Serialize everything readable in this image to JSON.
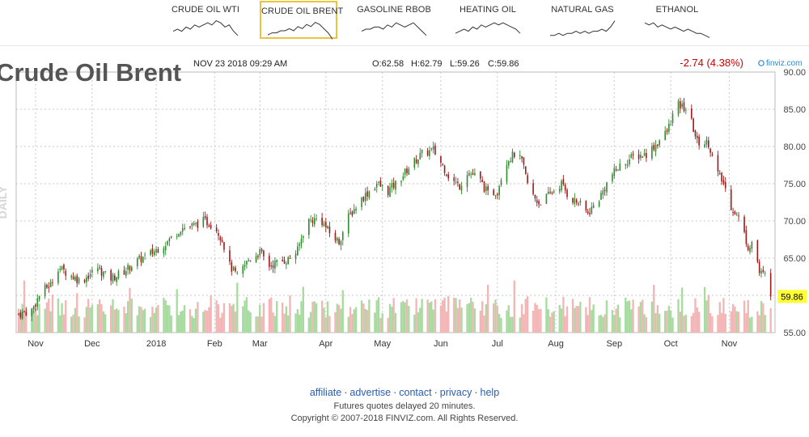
{
  "tabs": [
    {
      "label": "CRUDE OIL WTI",
      "active": false,
      "spark": [
        6,
        5,
        6,
        4,
        5,
        3,
        4,
        3,
        2,
        3,
        1,
        2,
        4,
        3,
        6,
        8
      ]
    },
    {
      "label": "CRUDE OIL BRENT",
      "active": true,
      "spark": [
        7,
        6,
        6,
        5,
        5,
        4,
        5,
        3,
        4,
        2,
        3,
        1,
        2,
        4,
        6,
        9
      ]
    },
    {
      "label": "GASOLINE RBOB",
      "active": false,
      "spark": [
        6,
        5,
        5,
        4,
        4,
        5,
        3,
        4,
        2,
        3,
        4,
        3,
        2,
        4,
        6,
        8
      ]
    },
    {
      "label": "HEATING OIL",
      "active": false,
      "spark": [
        7,
        6,
        5,
        6,
        4,
        5,
        3,
        4,
        3,
        2,
        3,
        2,
        3,
        4,
        5,
        7
      ]
    },
    {
      "label": "NATURAL GAS",
      "active": false,
      "spark": [
        8,
        8,
        7,
        8,
        7,
        7,
        6,
        7,
        6,
        7,
        6,
        6,
        5,
        6,
        4,
        1
      ]
    },
    {
      "label": "ETHANOL",
      "active": false,
      "spark": [
        2,
        3,
        2,
        4,
        3,
        4,
        5,
        4,
        5,
        6,
        5,
        6,
        7,
        7,
        8,
        9
      ]
    }
  ],
  "chart": {
    "title": "Crude Oil Brent",
    "side_label": "DAILY",
    "timestamp": "NOV 23 2018 09:29 AM",
    "ohlc": {
      "open": "O:62.58",
      "high": "H:62.79",
      "low": "L:59.26",
      "close": "C:59.86"
    },
    "change": "-2.74 (4.38%)",
    "watermark": "finviz.com",
    "last_price": "59.86",
    "colors": {
      "up": "#2e8b2e",
      "down": "#9b1a1a",
      "vol_up": "#a8dba0",
      "vol_down": "#f3b5b5",
      "change": "#cc0000",
      "badge": "#ffff33"
    }
  },
  "chart_data": {
    "type": "candlestick",
    "title": "Crude Oil Brent",
    "ylim": [
      55,
      90
    ],
    "y_ticks": [
      55,
      60,
      65,
      70,
      75,
      80,
      85,
      90
    ],
    "y_tick_labels": [
      "55.00",
      "60.00",
      "65.00",
      "70.00",
      "75.00",
      "80.00",
      "85.00",
      "90.00"
    ],
    "x_labels": [
      "Nov",
      "Dec",
      "2018",
      "Feb",
      "Mar",
      "Apr",
      "May",
      "Jun",
      "Jul",
      "Aug",
      "Sep",
      "Oct",
      "Nov"
    ],
    "x_label_days": [
      9,
      39,
      73,
      104,
      128,
      163,
      193,
      224,
      254,
      285,
      316,
      346,
      377
    ],
    "last_close": 59.86,
    "anchors": [
      [
        0,
        57.5
      ],
      [
        7,
        58.0
      ],
      [
        12,
        60.5
      ],
      [
        17,
        61.5
      ],
      [
        21,
        63.8
      ],
      [
        27,
        62.8
      ],
      [
        33,
        61.9
      ],
      [
        42,
        63.7
      ],
      [
        48,
        62.2
      ],
      [
        55,
        63.0
      ],
      [
        62,
        64.5
      ],
      [
        70,
        65.6
      ],
      [
        78,
        67.0
      ],
      [
        86,
        69.0
      ],
      [
        93,
        69.4
      ],
      [
        98,
        70.0
      ],
      [
        104,
        69.4
      ],
      [
        108,
        67.5
      ],
      [
        112,
        64.0
      ],
      [
        116,
        62.5
      ],
      [
        122,
        64.8
      ],
      [
        128,
        65.8
      ],
      [
        133,
        64.0
      ],
      [
        138,
        64.5
      ],
      [
        143,
        64.8
      ],
      [
        148,
        66.0
      ],
      [
        153,
        70.0
      ],
      [
        160,
        70.3
      ],
      [
        166,
        68.0
      ],
      [
        170,
        67.2
      ],
      [
        175,
        70.5
      ],
      [
        182,
        73.0
      ],
      [
        190,
        75.0
      ],
      [
        196,
        74.0
      ],
      [
        202,
        75.5
      ],
      [
        208,
        77.5
      ],
      [
        214,
        79.0
      ],
      [
        220,
        79.5
      ],
      [
        226,
        77.0
      ],
      [
        229,
        75.6
      ],
      [
        234,
        74.7
      ],
      [
        238,
        76.6
      ],
      [
        244,
        75.8
      ],
      [
        249,
        73.6
      ],
      [
        254,
        74.0
      ],
      [
        258,
        77.8
      ],
      [
        263,
        79.0
      ],
      [
        267,
        78.0
      ],
      [
        271,
        74.0
      ],
      [
        276,
        72.4
      ],
      [
        282,
        73.6
      ],
      [
        288,
        75.0
      ],
      [
        292,
        73.2
      ],
      [
        297,
        72.4
      ],
      [
        302,
        71.0
      ],
      [
        308,
        73.0
      ],
      [
        314,
        76.0
      ],
      [
        320,
        77.6
      ],
      [
        326,
        78.6
      ],
      [
        333,
        79.0
      ],
      [
        339,
        80.5
      ],
      [
        344,
        82.0
      ],
      [
        349,
        85.6
      ],
      [
        355,
        85.0
      ],
      [
        360,
        80.6
      ],
      [
        366,
        80.5
      ],
      [
        370,
        76.7
      ],
      [
        374,
        75.0
      ],
      [
        378,
        72.0
      ],
      [
        383,
        70.0
      ],
      [
        387,
        66.5
      ],
      [
        390,
        67.5
      ],
      [
        393,
        63.0
      ],
      [
        397,
        62.6
      ],
      [
        399,
        59.9
      ]
    ]
  },
  "footer": {
    "links": [
      "affiliate",
      "advertise",
      "contact",
      "privacy",
      "help"
    ],
    "note": "Futures quotes delayed 20 minutes.",
    "copyright": "Copyright © 2007-2018 FINVIZ.com. All Rights Reserved."
  }
}
